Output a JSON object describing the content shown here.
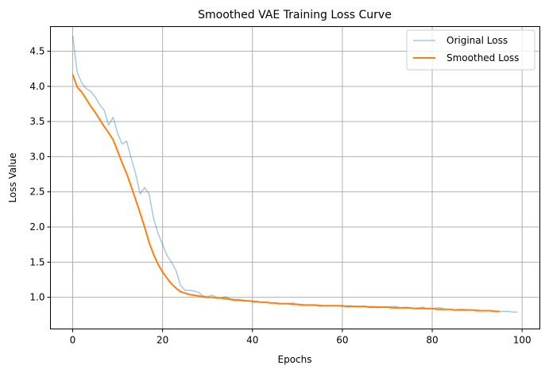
{
  "chart_data": {
    "type": "line",
    "title": "Smoothed VAE Training Loss Curve",
    "xlabel": "Epochs",
    "ylabel": "Loss Value",
    "xlim": [
      -4.95,
      103.95
    ],
    "ylim": [
      0.55,
      4.85
    ],
    "xticks": [
      0,
      20,
      40,
      60,
      80,
      100
    ],
    "yticks": [
      1.0,
      1.5,
      2.0,
      2.5,
      3.0,
      3.5,
      4.0,
      4.5
    ],
    "grid": true,
    "legend_position": "top-right",
    "series": [
      {
        "name": "Original Loss",
        "color": "#1f77b4",
        "opacity": 0.4,
        "x": [
          0,
          1,
          2,
          3,
          4,
          5,
          6,
          7,
          8,
          9,
          10,
          11,
          12,
          13,
          14,
          15,
          16,
          17,
          18,
          19,
          20,
          21,
          22,
          23,
          24,
          25,
          26,
          27,
          28,
          29,
          30,
          31,
          32,
          33,
          34,
          35,
          36,
          37,
          38,
          39,
          40,
          41,
          42,
          43,
          44,
          45,
          46,
          47,
          48,
          49,
          50,
          51,
          52,
          53,
          54,
          55,
          56,
          57,
          58,
          59,
          60,
          61,
          62,
          63,
          64,
          65,
          66,
          67,
          68,
          69,
          70,
          71,
          72,
          73,
          74,
          75,
          76,
          77,
          78,
          79,
          80,
          81,
          82,
          83,
          84,
          85,
          86,
          87,
          88,
          89,
          90,
          91,
          92,
          93,
          94,
          95,
          96,
          97,
          98,
          99
        ],
        "y": [
          4.72,
          4.2,
          4.05,
          3.97,
          3.93,
          3.85,
          3.74,
          3.66,
          3.45,
          3.56,
          3.33,
          3.18,
          3.22,
          2.98,
          2.76,
          2.47,
          2.56,
          2.47,
          2.12,
          1.91,
          1.75,
          1.59,
          1.5,
          1.38,
          1.17,
          1.1,
          1.1,
          1.09,
          1.07,
          1.02,
          1.01,
          1.03,
          1.0,
          0.99,
          1.01,
          0.98,
          0.97,
          0.97,
          0.96,
          0.95,
          0.95,
          0.94,
          0.93,
          0.93,
          0.92,
          0.92,
          0.91,
          0.91,
          0.91,
          0.92,
          0.9,
          0.9,
          0.89,
          0.89,
          0.89,
          0.89,
          0.88,
          0.88,
          0.88,
          0.88,
          0.87,
          0.88,
          0.88,
          0.87,
          0.87,
          0.87,
          0.87,
          0.87,
          0.85,
          0.86,
          0.86,
          0.87,
          0.87,
          0.85,
          0.86,
          0.85,
          0.84,
          0.85,
          0.86,
          0.83,
          0.84,
          0.85,
          0.85,
          0.83,
          0.83,
          0.82,
          0.83,
          0.83,
          0.82,
          0.82,
          0.82,
          0.81,
          0.81,
          0.81,
          0.8,
          0.8,
          0.8,
          0.8,
          0.79,
          0.79
        ]
      },
      {
        "name": "Smoothed Loss",
        "color": "#ff7f0e",
        "opacity": 1,
        "x": [
          0,
          1,
          2,
          3,
          4,
          5,
          6,
          7,
          8,
          9,
          10,
          11,
          12,
          13,
          14,
          15,
          16,
          17,
          18,
          19,
          20,
          21,
          22,
          23,
          24,
          25,
          26,
          27,
          28,
          29,
          30,
          31,
          32,
          33,
          34,
          35,
          36,
          37,
          38,
          39,
          40,
          41,
          42,
          43,
          44,
          45,
          46,
          47,
          48,
          49,
          50,
          51,
          52,
          53,
          54,
          55,
          56,
          57,
          58,
          59,
          60,
          61,
          62,
          63,
          64,
          65,
          66,
          67,
          68,
          69,
          70,
          71,
          72,
          73,
          74,
          75,
          76,
          77,
          78,
          79,
          80,
          81,
          82,
          83,
          84,
          85,
          86,
          87,
          88,
          89,
          90,
          91,
          92,
          93,
          94,
          95
        ],
        "y": [
          4.17,
          3.99,
          3.92,
          3.82,
          3.72,
          3.63,
          3.53,
          3.43,
          3.34,
          3.24,
          3.08,
          2.91,
          2.76,
          2.58,
          2.39,
          2.2,
          2.0,
          1.78,
          1.61,
          1.47,
          1.36,
          1.27,
          1.19,
          1.13,
          1.08,
          1.06,
          1.04,
          1.03,
          1.02,
          1.01,
          1.0,
          1.0,
          0.99,
          0.99,
          0.98,
          0.97,
          0.96,
          0.96,
          0.95,
          0.95,
          0.94,
          0.94,
          0.93,
          0.93,
          0.92,
          0.92,
          0.91,
          0.91,
          0.91,
          0.9,
          0.9,
          0.89,
          0.89,
          0.89,
          0.89,
          0.88,
          0.88,
          0.88,
          0.88,
          0.88,
          0.88,
          0.87,
          0.87,
          0.87,
          0.87,
          0.87,
          0.86,
          0.86,
          0.86,
          0.86,
          0.86,
          0.85,
          0.85,
          0.85,
          0.85,
          0.85,
          0.84,
          0.84,
          0.84,
          0.84,
          0.84,
          0.83,
          0.83,
          0.83,
          0.83,
          0.82,
          0.82,
          0.82,
          0.82,
          0.82,
          0.81,
          0.81,
          0.81,
          0.81,
          0.8,
          0.8
        ]
      }
    ]
  }
}
